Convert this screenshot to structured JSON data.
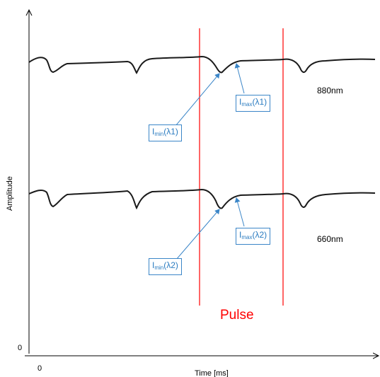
{
  "chart_data": {
    "type": "line",
    "xlabel": "Time [ms]",
    "ylabel": "Amplitude",
    "x_origin_label": "0",
    "y_origin_label": "0",
    "series": [
      {
        "name": "880nm"
      },
      {
        "name": "660nm"
      }
    ],
    "pulse_label": "Pulse",
    "pulse_color": "#ff0000",
    "annotations": [
      {
        "base": "I",
        "sub": "min",
        "arg": "(λ1)"
      },
      {
        "base": "I",
        "sub": "max",
        "arg": "(λ1)"
      },
      {
        "base": "I",
        "sub": "min",
        "arg": "(λ2)"
      },
      {
        "base": "I",
        "sub": "max",
        "arg": "(λ2)"
      }
    ],
    "annotation_color": "#2a7bc0",
    "grid": false
  }
}
